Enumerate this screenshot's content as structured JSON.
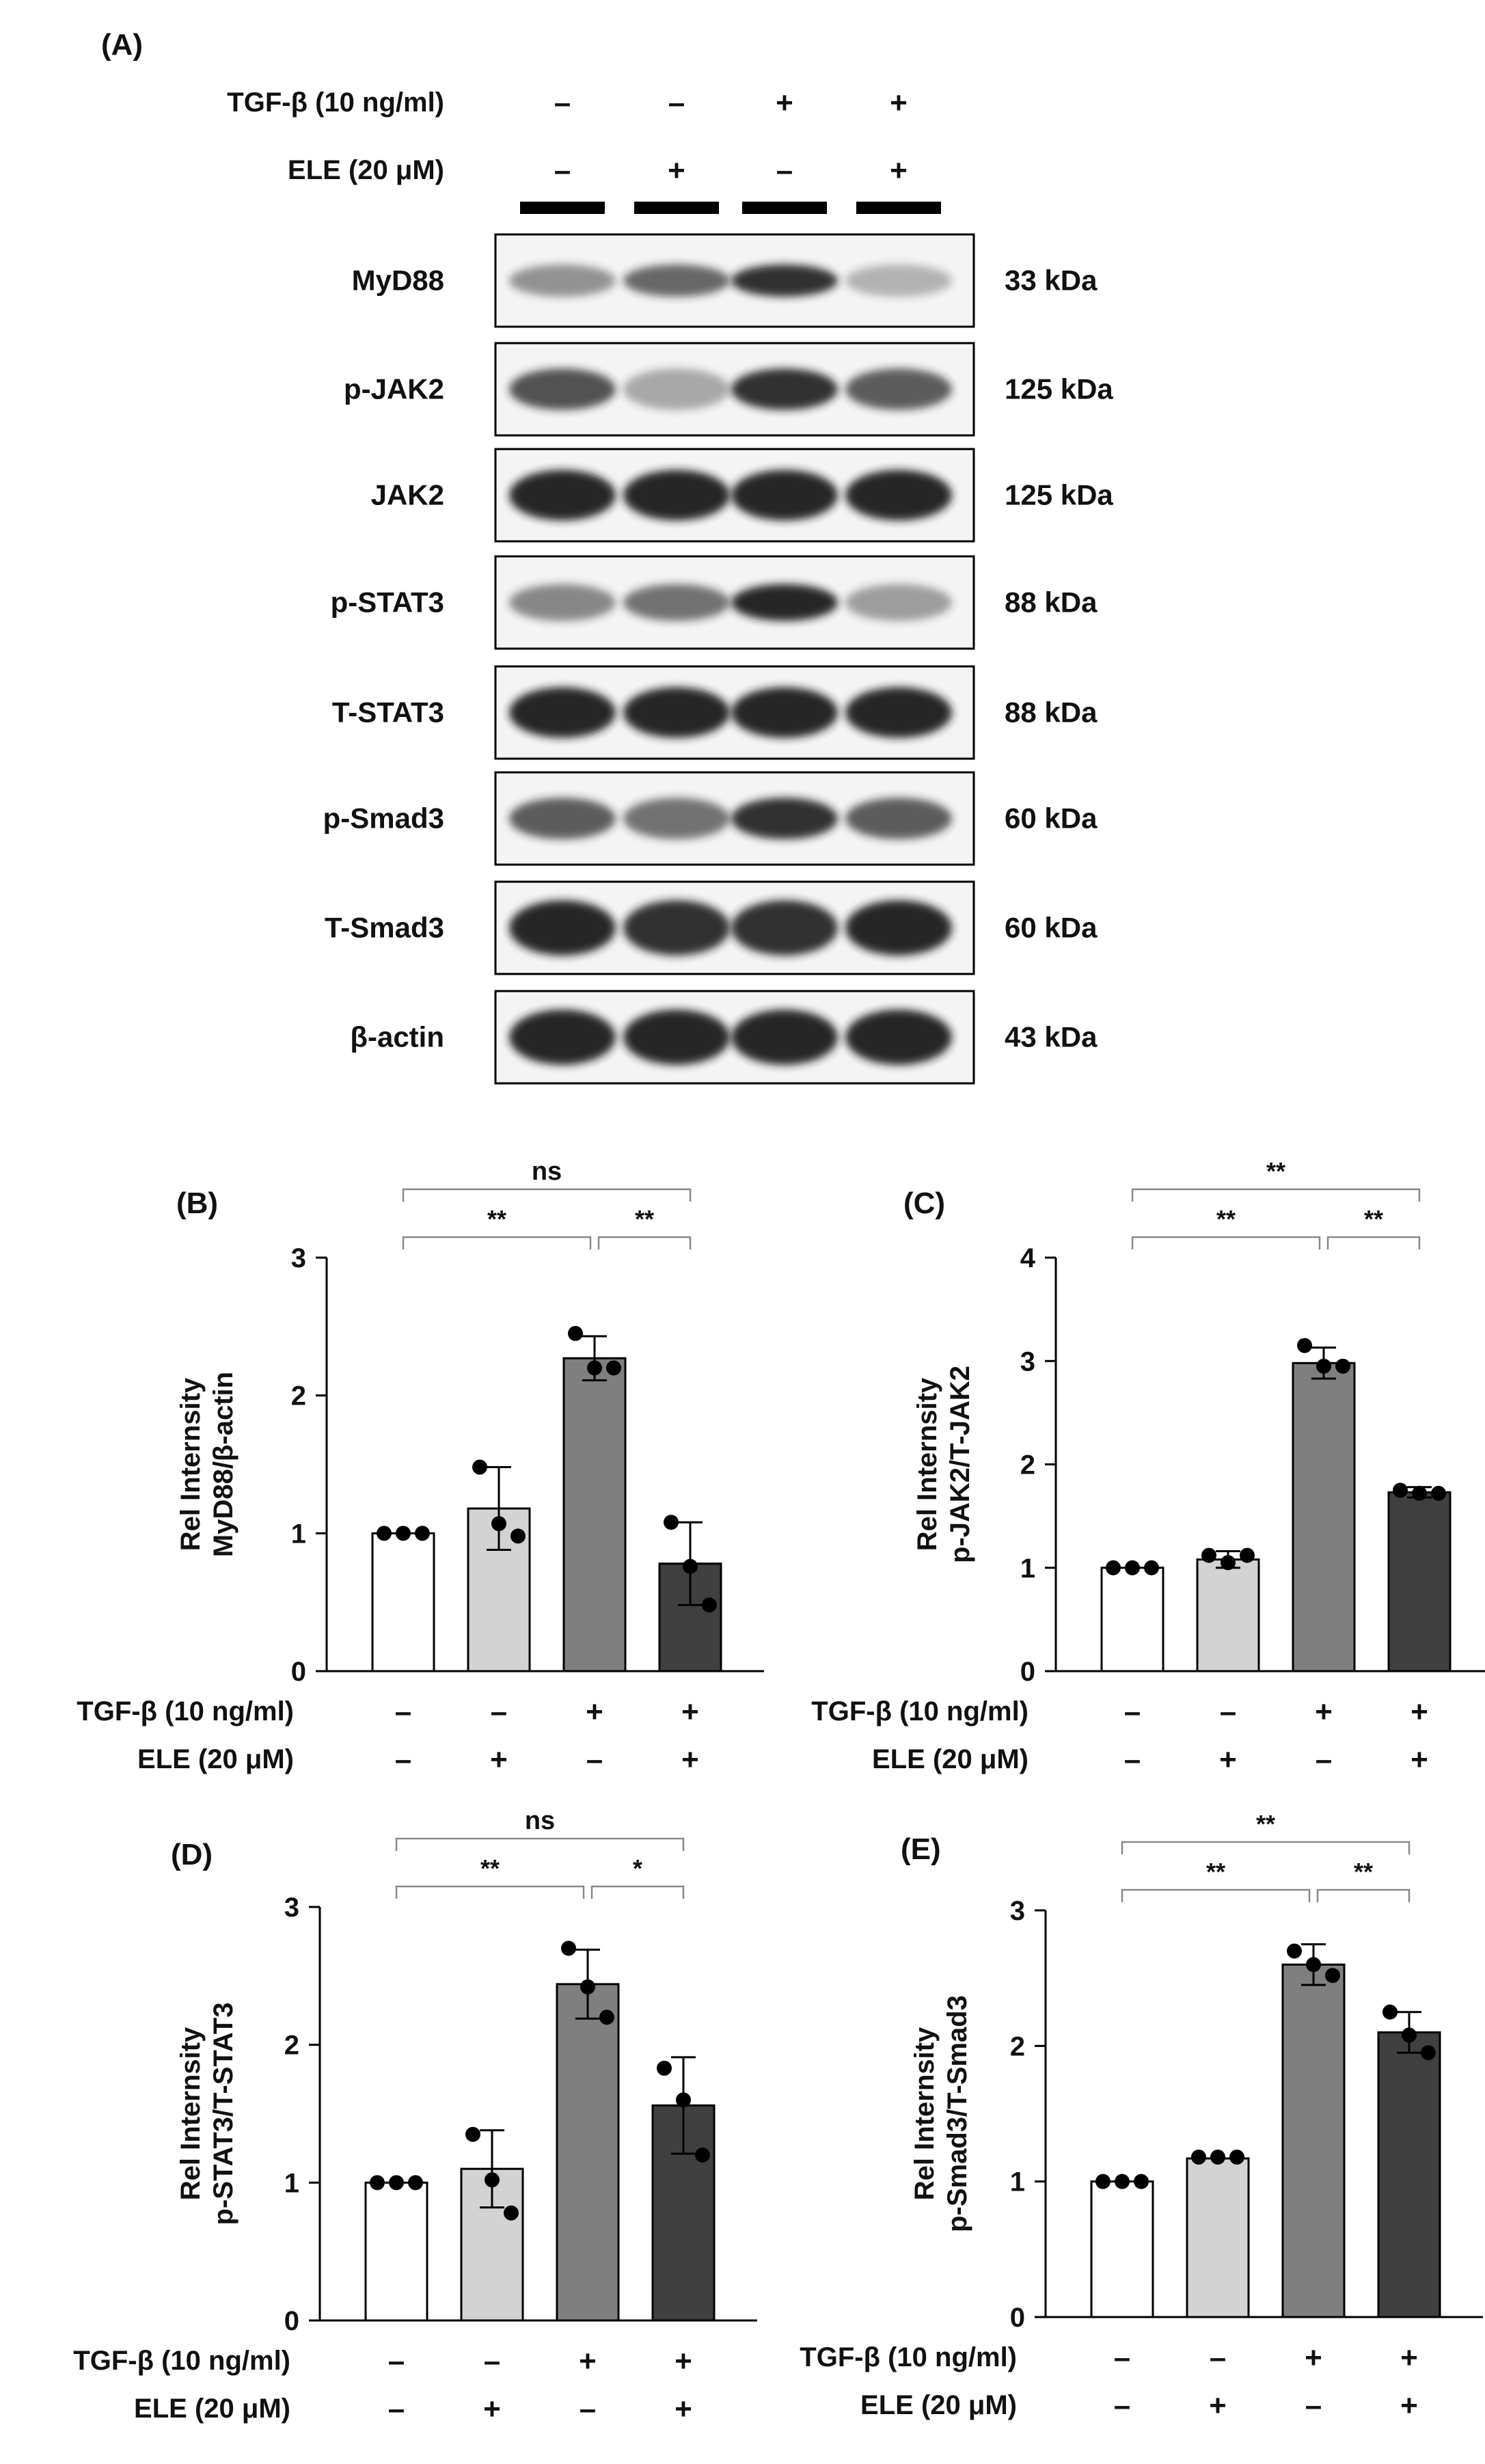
{
  "panel_a": {
    "tag": "(A)",
    "conditions": [
      {
        "label": "TGF-β (10 ng/ml)",
        "signs": [
          "–",
          "–",
          "+",
          "+"
        ]
      },
      {
        "label": "ELE (20 μM)",
        "signs": [
          "–",
          "+",
          "–",
          "+"
        ]
      }
    ],
    "blots": [
      {
        "protein": "MyD88",
        "size": "33 kDa",
        "intensity": [
          0.45,
          0.65,
          0.9,
          0.3
        ],
        "height": 0.35
      },
      {
        "protein": "p-JAK2",
        "size": "125 kDa",
        "intensity": [
          0.75,
          0.35,
          0.9,
          0.7
        ],
        "height": 0.45
      },
      {
        "protein": "JAK2",
        "size": "125 kDa",
        "intensity": [
          0.95,
          0.95,
          0.95,
          0.95
        ],
        "height": 0.55
      },
      {
        "protein": "p-STAT3",
        "size": "88 kDa",
        "intensity": [
          0.5,
          0.6,
          0.95,
          0.4
        ],
        "height": 0.4
      },
      {
        "protein": "T-STAT3",
        "size": "88 kDa",
        "intensity": [
          0.95,
          0.95,
          0.95,
          0.95
        ],
        "height": 0.55
      },
      {
        "protein": "p-Smad3",
        "size": "60 kDa",
        "intensity": [
          0.7,
          0.6,
          0.9,
          0.7
        ],
        "height": 0.45
      },
      {
        "protein": "T-Smad3",
        "size": "60 kDa",
        "intensity": [
          0.95,
          0.9,
          0.9,
          0.95
        ],
        "height": 0.6
      },
      {
        "protein": "β-actin",
        "size": "43 kDa",
        "intensity": [
          0.95,
          0.95,
          0.95,
          0.95
        ],
        "height": 0.6
      }
    ]
  },
  "colors": {
    "bars": [
      "#ffffff",
      "#d3d3d3",
      "#7f7f7f",
      "#404040"
    ],
    "band": "#1a1a1a",
    "axis": "#000000",
    "bracket": "#888888"
  },
  "chart_data": [
    {
      "tag": "(B)",
      "type": "bar",
      "ylabel_lines": [
        "Rel Internsity",
        "MyD88/β-actin"
      ],
      "ylim": [
        0,
        3
      ],
      "yticks": [
        0,
        1,
        2,
        3
      ],
      "values": [
        1.0,
        1.18,
        2.27,
        0.78
      ],
      "errors": [
        0.0,
        0.3,
        0.16,
        0.3
      ],
      "points": [
        [
          1.0,
          1.0,
          1.0
        ],
        [
          1.48,
          1.07,
          0.98
        ],
        [
          2.45,
          2.2,
          2.2
        ],
        [
          1.08,
          0.76,
          0.48
        ]
      ],
      "brackets": [
        {
          "from": 0,
          "to": 3,
          "text": "ns",
          "level": 2
        },
        {
          "from": 0,
          "to": 2,
          "text": "**",
          "level": 1
        },
        {
          "from": 2,
          "to": 3,
          "text": "**",
          "level": 1
        }
      ],
      "conditions": [
        {
          "label": "TGF-β (10 ng/ml)",
          "signs": [
            "–",
            "–",
            "+",
            "+"
          ]
        },
        {
          "label": "ELE (20 μM)",
          "signs": [
            "–",
            "+",
            "–",
            "+"
          ]
        }
      ]
    },
    {
      "tag": "(C)",
      "type": "bar",
      "ylabel_lines": [
        "Rel Internsity",
        "p-JAK2/T-JAK2"
      ],
      "ylim": [
        0,
        4
      ],
      "yticks": [
        0,
        1,
        2,
        3,
        4
      ],
      "values": [
        1.0,
        1.08,
        2.98,
        1.73
      ],
      "errors": [
        0.0,
        0.08,
        0.15,
        0.05
      ],
      "points": [
        [
          1.0,
          1.0,
          1.0
        ],
        [
          1.12,
          1.05,
          1.12
        ],
        [
          3.15,
          2.95,
          2.95
        ],
        [
          1.75,
          1.72,
          1.72
        ]
      ],
      "brackets": [
        {
          "from": 0,
          "to": 3,
          "text": "**",
          "level": 2
        },
        {
          "from": 0,
          "to": 2,
          "text": "**",
          "level": 1
        },
        {
          "from": 2,
          "to": 3,
          "text": "**",
          "level": 1
        }
      ],
      "conditions": [
        {
          "label": "TGF-β (10 ng/ml)",
          "signs": [
            "–",
            "–",
            "+",
            "+"
          ]
        },
        {
          "label": "ELE (20 μM)",
          "signs": [
            "–",
            "+",
            "–",
            "+"
          ]
        }
      ]
    },
    {
      "tag": "(D)",
      "type": "bar",
      "ylabel_lines": [
        "Rel Internsity",
        "p-STAT3/T-STAT3"
      ],
      "ylim": [
        0,
        3
      ],
      "yticks": [
        0,
        1,
        2,
        3
      ],
      "values": [
        1.0,
        1.1,
        2.44,
        1.56
      ],
      "errors": [
        0.0,
        0.28,
        0.25,
        0.35
      ],
      "points": [
        [
          1.0,
          1.0,
          1.0
        ],
        [
          1.35,
          1.02,
          0.78
        ],
        [
          2.7,
          2.42,
          2.2
        ],
        [
          1.83,
          1.6,
          1.2
        ]
      ],
      "brackets": [
        {
          "from": 0,
          "to": 3,
          "text": "ns",
          "level": 2
        },
        {
          "from": 0,
          "to": 2,
          "text": "**",
          "level": 1
        },
        {
          "from": 2,
          "to": 3,
          "text": "*",
          "level": 1
        }
      ],
      "conditions": [
        {
          "label": "TGF-β (10 ng/ml)",
          "signs": [
            "–",
            "–",
            "+",
            "+"
          ]
        },
        {
          "label": "ELE (20 μM)",
          "signs": [
            "–",
            "+",
            "–",
            "+"
          ]
        }
      ]
    },
    {
      "tag": "(E)",
      "type": "bar",
      "ylabel_lines": [
        "Rel Internsity",
        "p-Smad3/T-Smad3"
      ],
      "ylim": [
        0,
        3
      ],
      "yticks": [
        0,
        1,
        2,
        3
      ],
      "values": [
        1.0,
        1.17,
        2.6,
        2.1
      ],
      "errors": [
        0.0,
        0.0,
        0.15,
        0.15
      ],
      "points": [
        [
          1.0,
          1.0,
          1.0
        ],
        [
          1.18,
          1.18,
          1.18
        ],
        [
          2.7,
          2.6,
          2.52
        ],
        [
          2.25,
          2.08,
          1.95
        ]
      ],
      "brackets": [
        {
          "from": 0,
          "to": 3,
          "text": "**",
          "level": 2
        },
        {
          "from": 0,
          "to": 2,
          "text": "**",
          "level": 1
        },
        {
          "from": 2,
          "to": 3,
          "text": "**",
          "level": 1
        }
      ],
      "conditions": [
        {
          "label": "TGF-β (10 ng/ml)",
          "signs": [
            "–",
            "–",
            "+",
            "+"
          ]
        },
        {
          "label": "ELE (20 μM)",
          "signs": [
            "–",
            "+",
            "–",
            "+"
          ]
        }
      ]
    }
  ]
}
